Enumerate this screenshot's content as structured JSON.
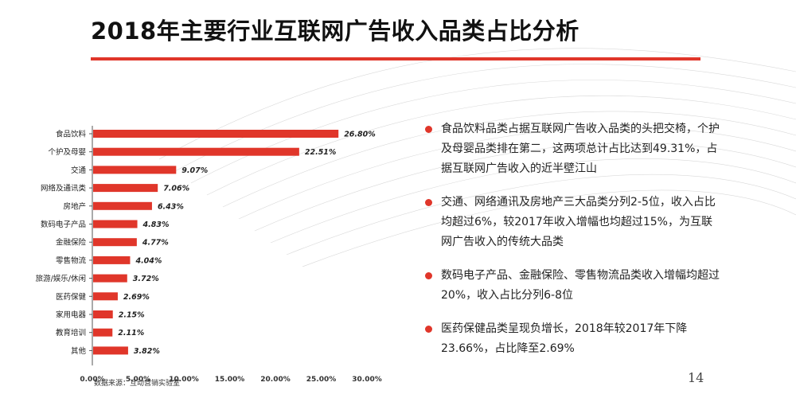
{
  "page": {
    "title": "2018年主要行业互联网广告收入品类占比分析",
    "source": "数据来源：互动营销实验室",
    "page_number": "14",
    "accent_color": "#e0362a"
  },
  "chart_data": {
    "type": "bar",
    "orientation": "horizontal",
    "title": "",
    "xlabel": "",
    "ylabel": "",
    "categories": [
      "食品饮料",
      "个护及母婴",
      "交通",
      "网络及通讯类",
      "房地产",
      "数码电子产品",
      "金融保险",
      "零售物流",
      "旅游/娱乐/休闲",
      "医药保健",
      "家用电器",
      "教育培训",
      "其他"
    ],
    "values": [
      26.8,
      22.51,
      9.07,
      7.06,
      6.43,
      4.83,
      4.77,
      4.04,
      3.72,
      2.69,
      2.15,
      2.11,
      3.82
    ],
    "value_labels": [
      "26.80%",
      "22.51%",
      "9.07%",
      "7.06%",
      "6.43%",
      "4.83%",
      "4.77%",
      "4.04%",
      "3.72%",
      "2.69%",
      "2.15%",
      "2.11%",
      "3.82%"
    ],
    "xlim": [
      0,
      30
    ],
    "xticks": [
      0,
      5,
      10,
      15,
      20,
      25,
      30
    ],
    "xtick_labels": [
      "0.00%",
      "5.00%",
      "10.00%",
      "15.00%",
      "20.00%",
      "25.00%",
      "30.00%"
    ],
    "bar_color": "#e0362a",
    "grid": false,
    "legend": "none"
  },
  "notes": [
    {
      "text": "食品饮料品类占据互联网广告收入品类的头把交椅，个护及母婴品类排在第二，这两项总计占比达到49.31%，占据互联网广告收入的近半壁江山"
    },
    {
      "text": "交通、网络通讯及房地产三大品类分列2-5位，收入占比均超过6%，较2017年收入增幅也均超过15%，为互联网广告收入的传统大品类"
    },
    {
      "text": "数码电子产品、金融保险、零售物流品类收入增幅均超过20%，收入占比分列6-8位"
    },
    {
      "text": "医药保健品类呈现负增长，2018年较2017年下降23.66%，占比降至2.69%"
    }
  ]
}
